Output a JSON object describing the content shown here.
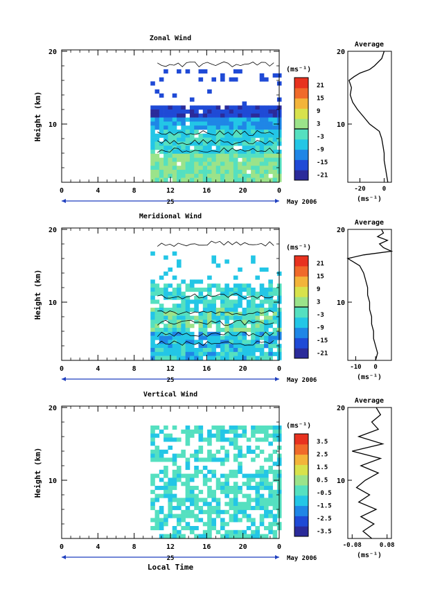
{
  "colors": {
    "scale": [
      "#2b2b9a",
      "#1f4ad6",
      "#1f86e6",
      "#23c6e6",
      "#55e0c0",
      "#9be38a",
      "#d8e24c",
      "#f3b43a",
      "#f06a2a",
      "#e8321f"
    ]
  },
  "panels": [
    {
      "title": "Zonal Wind",
      "ylabel": "Height (km)",
      "unit": "(ms⁻¹)",
      "cbar_ticks": [
        "21",
        "15",
        "9",
        "3",
        "-3",
        "-9",
        "-15",
        "-21"
      ],
      "date_label": "25",
      "month_label": "May 2006",
      "avg_title": "Average",
      "avg_xticks": [
        "-20",
        "0"
      ],
      "avg_unit": "(ms⁻¹)"
    },
    {
      "title": "Meridional Wind",
      "ylabel": "Height (km)",
      "unit": "(ms⁻¹)",
      "cbar_ticks": [
        "21",
        "15",
        "9",
        "3",
        "-3",
        "-9",
        "-15",
        "-21"
      ],
      "date_label": "25",
      "month_label": "May 2006",
      "avg_title": "Average",
      "avg_xticks": [
        "-10",
        "0"
      ],
      "avg_unit": "(ms⁻¹)"
    },
    {
      "title": "Vertical Wind",
      "ylabel": "Height (km)",
      "unit": "(ms⁻¹)",
      "cbar_ticks": [
        "3.5",
        "2.5",
        "1.5",
        "0.5",
        "-0.5",
        "-1.5",
        "-2.5",
        "-3.5"
      ],
      "date_label": "25",
      "month_label": "May 2006",
      "avg_title": "Average",
      "avg_xticks": [
        "-0.08",
        "0.08"
      ],
      "avg_unit": "(ms⁻¹)"
    }
  ],
  "xticks": [
    "0",
    "4",
    "8",
    "12",
    "16",
    "20",
    "0"
  ],
  "yticks": [
    "20",
    "10"
  ],
  "xlabel": "Local Time",
  "chart_data": [
    {
      "type": "heatmap",
      "title": "Zonal Wind",
      "xlabel": "",
      "ylabel": "Height (km)",
      "xlim": [
        0,
        24
      ],
      "ylim": [
        2,
        20
      ],
      "data_start_hour": 9.8,
      "colorbar": {
        "unit": "ms-1",
        "range": [
          -24,
          24
        ],
        "zero_line": 0
      },
      "profile": {
        "title": "Average",
        "xlim": [
          -30,
          6
        ],
        "heights": [
          2,
          3,
          4,
          5,
          6,
          7,
          8,
          9,
          10,
          11,
          12,
          13,
          14,
          15,
          16,
          16.5,
          17,
          17.5,
          18,
          19,
          20
        ],
        "values": [
          3,
          2,
          1,
          0,
          0,
          -1,
          -2,
          -4,
          -12,
          -17,
          -22,
          -26,
          -28,
          -27,
          -29,
          -25,
          -20,
          -12,
          -8,
          -2,
          0
        ]
      }
    },
    {
      "type": "heatmap",
      "title": "Meridional Wind",
      "xlabel": "",
      "ylabel": "Height (km)",
      "xlim": [
        0,
        24
      ],
      "ylim": [
        2,
        20
      ],
      "data_start_hour": 9.8,
      "colorbar": {
        "unit": "ms-1",
        "range": [
          -24,
          24
        ],
        "zero_line": 0
      },
      "profile": {
        "title": "Average",
        "xlim": [
          -14,
          8
        ],
        "heights": [
          2,
          3,
          4,
          5,
          6,
          7,
          8,
          9,
          10,
          11,
          12,
          13,
          14,
          15,
          16,
          16.5,
          17,
          17.5,
          18,
          18.5,
          19,
          19.5,
          20
        ],
        "values": [
          0,
          1,
          0,
          -1,
          -1,
          -2,
          -2,
          -3,
          -3,
          -4,
          -4,
          -5,
          -6,
          -8,
          -14,
          -6,
          8,
          4,
          2,
          6,
          1,
          4,
          3
        ]
      }
    },
    {
      "type": "heatmap",
      "title": "Vertical Wind",
      "xlabel": "Local Time",
      "ylabel": "Height (km)",
      "xlim": [
        0,
        24
      ],
      "ylim": [
        2,
        20
      ],
      "data_start_hour": 9.8,
      "colorbar": {
        "unit": "ms-1",
        "range": [
          -4,
          4
        ],
        "zero_line": null
      },
      "profile": {
        "title": "Average",
        "xlim": [
          -0.1,
          0.1
        ],
        "heights": [
          2,
          3,
          4,
          5,
          6,
          7,
          8,
          9,
          10,
          11,
          12,
          13,
          14,
          15,
          16,
          17,
          18,
          19,
          20
        ],
        "values": [
          0.01,
          -0.03,
          0.02,
          -0.04,
          0.03,
          -0.05,
          0.0,
          -0.06,
          -0.02,
          0.04,
          -0.04,
          0.05,
          -0.08,
          0.06,
          -0.05,
          0.04,
          0.01,
          0.05,
          0.03
        ]
      }
    }
  ]
}
